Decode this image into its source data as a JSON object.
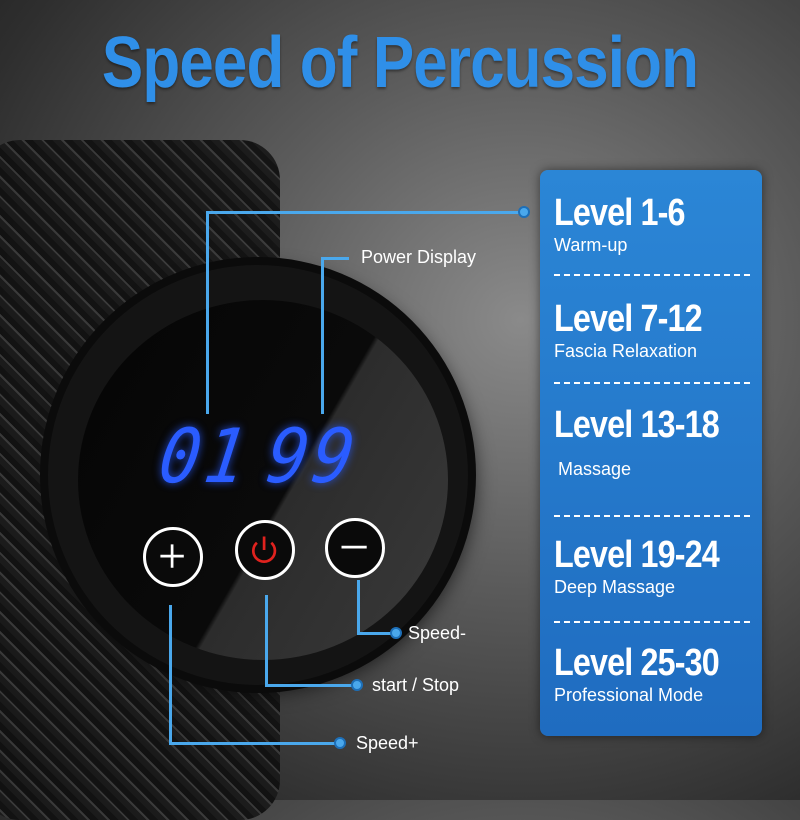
{
  "title": "Speed of Percussion",
  "display": {
    "level": "01",
    "power": "99"
  },
  "callouts": {
    "power_display": "Power Display",
    "speed_minus": "Speed-",
    "start_stop": "start / Stop",
    "speed_plus": "Speed+"
  },
  "buttons": [
    {
      "icon": "plus-icon"
    },
    {
      "icon": "power-icon",
      "color": "#e0221e"
    },
    {
      "icon": "minus-icon"
    }
  ],
  "levels": [
    {
      "title": "Level 1-6",
      "desc": "Warm-up"
    },
    {
      "title": "Level 7-12",
      "desc": "Fascia Relaxation"
    },
    {
      "title": "Level 13-18",
      "desc": "Massage"
    },
    {
      "title": "Level 19-24",
      "desc": "Deep Massage"
    },
    {
      "title": "Level 25-30",
      "desc": "Professional Mode"
    }
  ],
  "colors": {
    "accent": "#2f8fe8",
    "panel": "#2378c9",
    "digits": "#2a5cff"
  }
}
